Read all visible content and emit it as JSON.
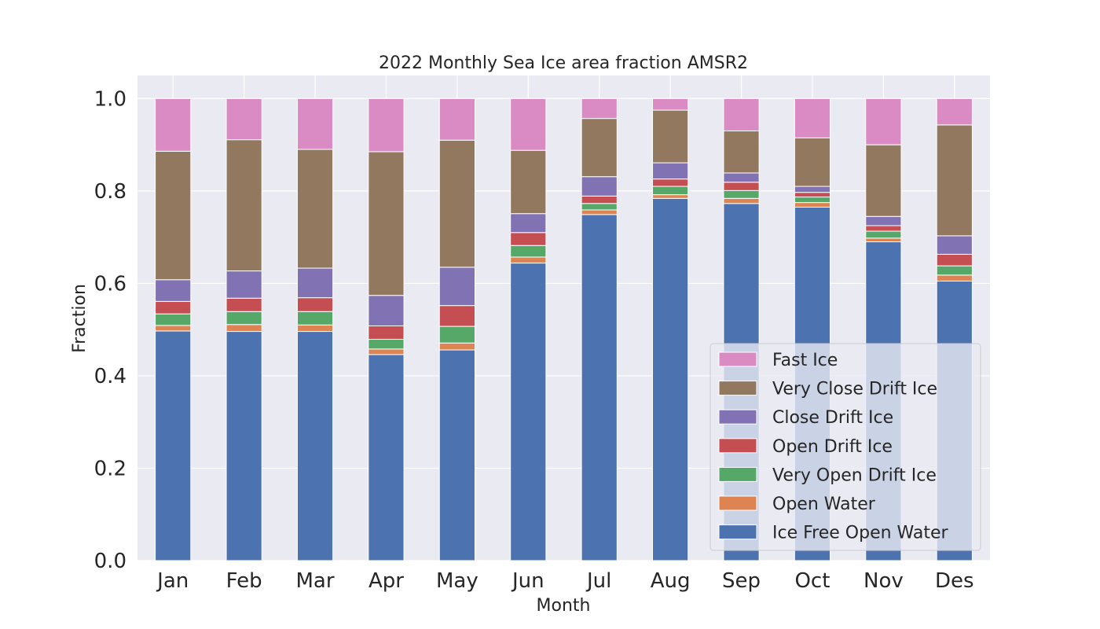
{
  "chart_data": {
    "type": "bar",
    "stacked": true,
    "title": "2022 Monthly Sea Ice area fraction AMSR2",
    "xlabel": "Month",
    "ylabel": "Fraction",
    "ylim": [
      0,
      1.05
    ],
    "yticks": [
      "0.0",
      "0.2",
      "0.4",
      "0.6",
      "0.8",
      "1.0"
    ],
    "grid": true,
    "legend_position": "lower-right",
    "categories": [
      "Jan",
      "Feb",
      "Mar",
      "Apr",
      "May",
      "Jun",
      "Jul",
      "Aug",
      "Sep",
      "Oct",
      "Nov",
      "Des"
    ],
    "series": [
      {
        "name": "Ice Free Open Water",
        "color": "#4c72b0",
        "values": [
          0.497,
          0.496,
          0.496,
          0.446,
          0.456,
          0.644,
          0.749,
          0.784,
          0.773,
          0.765,
          0.69,
          0.605
        ]
      },
      {
        "name": "Open Water",
        "color": "#dd8452",
        "values": [
          0.012,
          0.015,
          0.014,
          0.012,
          0.015,
          0.013,
          0.01,
          0.008,
          0.011,
          0.01,
          0.008,
          0.013
        ]
      },
      {
        "name": "Very Open Drift Ice",
        "color": "#55a868",
        "values": [
          0.025,
          0.028,
          0.029,
          0.021,
          0.036,
          0.025,
          0.014,
          0.018,
          0.017,
          0.012,
          0.015,
          0.02
        ]
      },
      {
        "name": "Open Drift Ice",
        "color": "#c44e52",
        "values": [
          0.027,
          0.029,
          0.03,
          0.029,
          0.045,
          0.028,
          0.016,
          0.016,
          0.018,
          0.01,
          0.012,
          0.025
        ]
      },
      {
        "name": "Close Drift Ice",
        "color": "#8172b3",
        "values": [
          0.047,
          0.059,
          0.064,
          0.066,
          0.083,
          0.041,
          0.042,
          0.035,
          0.02,
          0.013,
          0.02,
          0.04
        ]
      },
      {
        "name": "Very Close Drift Ice",
        "color": "#937860",
        "values": [
          0.278,
          0.284,
          0.257,
          0.311,
          0.275,
          0.137,
          0.126,
          0.114,
          0.091,
          0.105,
          0.155,
          0.24
        ]
      },
      {
        "name": "Fast Ice",
        "color": "#da8bc3",
        "values": [
          0.114,
          0.089,
          0.11,
          0.115,
          0.09,
          0.112,
          0.043,
          0.025,
          0.07,
          0.085,
          0.1,
          0.057
        ]
      }
    ]
  }
}
